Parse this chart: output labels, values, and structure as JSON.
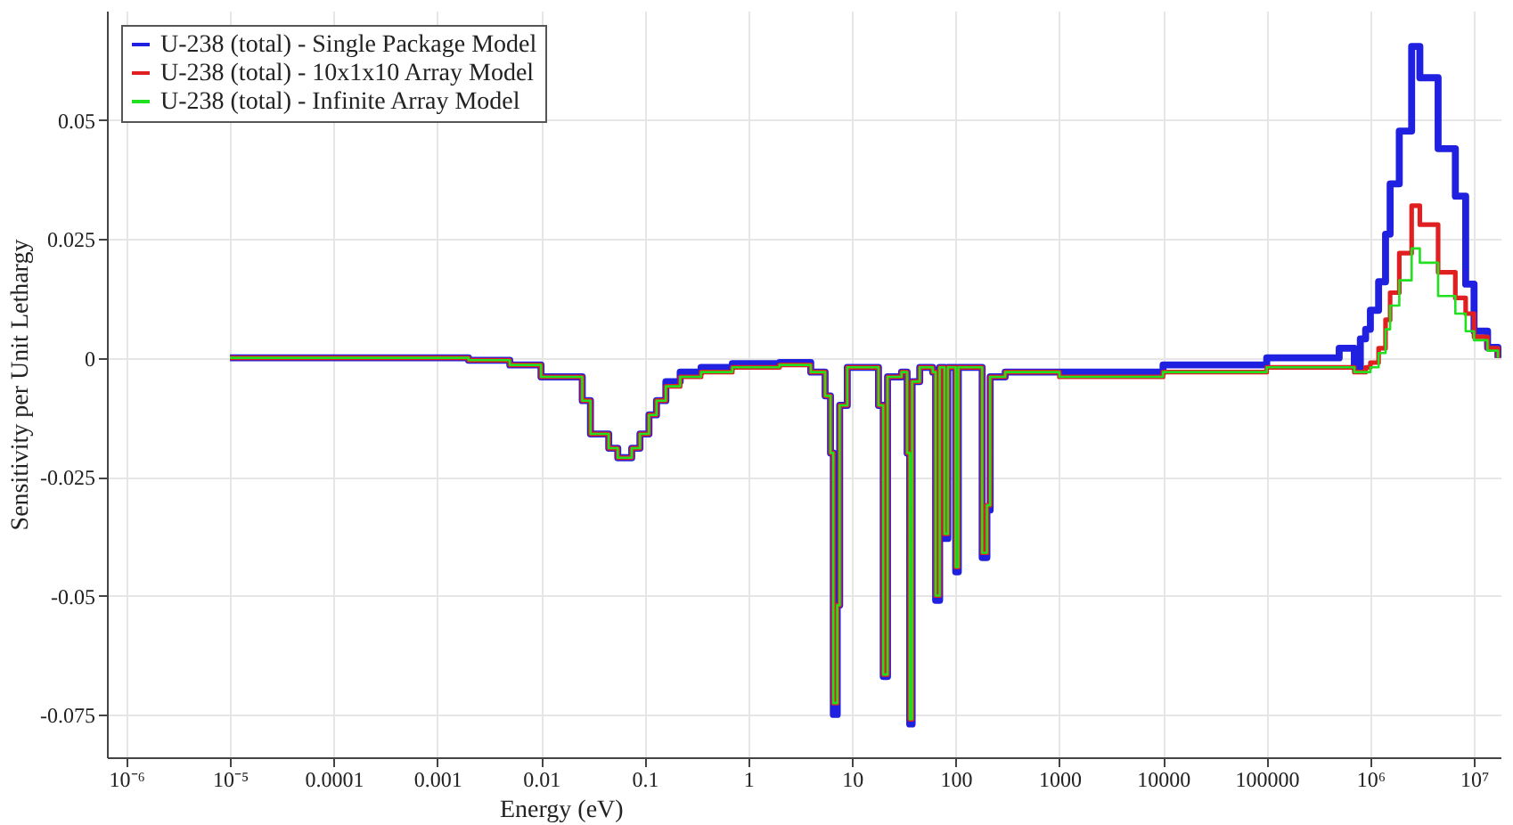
{
  "chart_data": {
    "type": "step",
    "xlabel": "Energy (eV)",
    "ylabel": "Sensitivity per Unit Lethargy",
    "log": "x",
    "grid": true,
    "legend": "top left",
    "marker": "none",
    "line_style": "solid",
    "xlim": [
      6.5e-07,
      18000000.0
    ],
    "ylim": [
      -0.084,
      0.073
    ],
    "xticks": [
      {
        "value": 1e-06,
        "label": "10⁻⁶"
      },
      {
        "value": 1e-05,
        "label": "10⁻⁵"
      },
      0.0001,
      0.001,
      0.01,
      0.1,
      1,
      10,
      100,
      1000,
      10000,
      100000,
      {
        "value": 1000000,
        "label": "10⁶"
      },
      {
        "value": 10000000,
        "label": "10⁷"
      }
    ],
    "yticks": [
      -0.075,
      -0.05,
      -0.025,
      0,
      0.025,
      0.05
    ],
    "x": [
      1e-05,
      0.002,
      0.005,
      0.01,
      0.025,
      0.03,
      0.045,
      0.055,
      0.075,
      0.09,
      0.11,
      0.13,
      0.16,
      0.22,
      0.35,
      0.7,
      2,
      4,
      5.5,
      6.2,
      6.6,
      7.2,
      7.6,
      9,
      15,
      18,
      20,
      22,
      30,
      34,
      36,
      38,
      45,
      60,
      64,
      70,
      78,
      84,
      100,
      106,
      180,
      200,
      215,
      300,
      1000,
      10000,
      100000,
      500000,
      700000,
      800000,
      900000,
      1000000,
      1200000,
      1400000,
      1550000,
      1900000,
      2500000,
      3000000,
      4500000,
      6600000,
      8300000,
      10000000,
      13500000,
      17000000
    ],
    "series": [
      {
        "name": "U-238 (total) - Single Package Model",
        "color": "#2020e0",
        "values": [
          0,
          -0.0005,
          -0.0015,
          -0.004,
          -0.009,
          -0.016,
          -0.019,
          -0.021,
          -0.019,
          -0.016,
          -0.012,
          -0.009,
          -0.005,
          -0.003,
          -0.002,
          -0.0012,
          -0.001,
          -0.003,
          -0.008,
          -0.02,
          -0.075,
          -0.052,
          -0.01,
          -0.002,
          -0.002,
          -0.01,
          -0.067,
          -0.004,
          -0.003,
          -0.02,
          -0.077,
          -0.005,
          -0.002,
          -0.003,
          -0.051,
          -0.002,
          -0.038,
          -0.002,
          -0.045,
          -0.002,
          -0.042,
          -0.032,
          -0.004,
          -0.003,
          -0.003,
          -0.0015,
          0,
          0.002,
          -0.002,
          0.004,
          0.006,
          0.01,
          0.016,
          0.026,
          0.0366,
          0.0477,
          0.0655,
          0.0589,
          0.044,
          0.034,
          0.0155,
          0.0056,
          0.0022,
          0
        ]
      },
      {
        "name": "U-238 (total) - 10x1x10 Array Model",
        "color": "#e02020",
        "values": [
          0,
          -0.0005,
          -0.0015,
          -0.004,
          -0.009,
          -0.016,
          -0.019,
          -0.021,
          -0.019,
          -0.016,
          -0.012,
          -0.009,
          -0.006,
          -0.004,
          -0.003,
          -0.002,
          -0.0015,
          -0.003,
          -0.008,
          -0.02,
          -0.0726,
          -0.052,
          -0.01,
          -0.002,
          -0.002,
          -0.01,
          -0.0666,
          -0.004,
          -0.003,
          -0.02,
          -0.076,
          -0.005,
          -0.002,
          -0.003,
          -0.05,
          -0.002,
          -0.037,
          -0.002,
          -0.044,
          -0.002,
          -0.041,
          -0.031,
          -0.004,
          -0.003,
          -0.004,
          -0.003,
          -0.002,
          -0.002,
          -0.003,
          -0.003,
          -0.002,
          -0.001,
          0.002,
          0.008,
          0.0137,
          0.022,
          0.032,
          0.028,
          0.018,
          0.0126,
          0.0093,
          0.0044,
          0.002,
          0
        ]
      },
      {
        "name": "U-238 (total) - Infinite Array Model",
        "color": "#20e020",
        "values": [
          0,
          -0.0005,
          -0.0015,
          -0.004,
          -0.009,
          -0.016,
          -0.019,
          -0.021,
          -0.019,
          -0.016,
          -0.012,
          -0.009,
          -0.006,
          -0.004,
          -0.003,
          -0.002,
          -0.0015,
          -0.003,
          -0.008,
          -0.02,
          -0.0726,
          -0.052,
          -0.01,
          -0.002,
          -0.002,
          -0.01,
          -0.0666,
          -0.004,
          -0.003,
          -0.02,
          -0.076,
          -0.005,
          -0.002,
          -0.003,
          -0.05,
          -0.002,
          -0.037,
          -0.002,
          -0.044,
          -0.002,
          -0.041,
          -0.031,
          -0.004,
          -0.003,
          -0.004,
          -0.003,
          -0.002,
          -0.002,
          -0.003,
          -0.003,
          -0.003,
          -0.002,
          0.001,
          0.006,
          0.011,
          0.0163,
          0.023,
          0.02,
          0.013,
          0.0093,
          0.0056,
          0.0037,
          0.0015,
          0
        ]
      }
    ]
  }
}
